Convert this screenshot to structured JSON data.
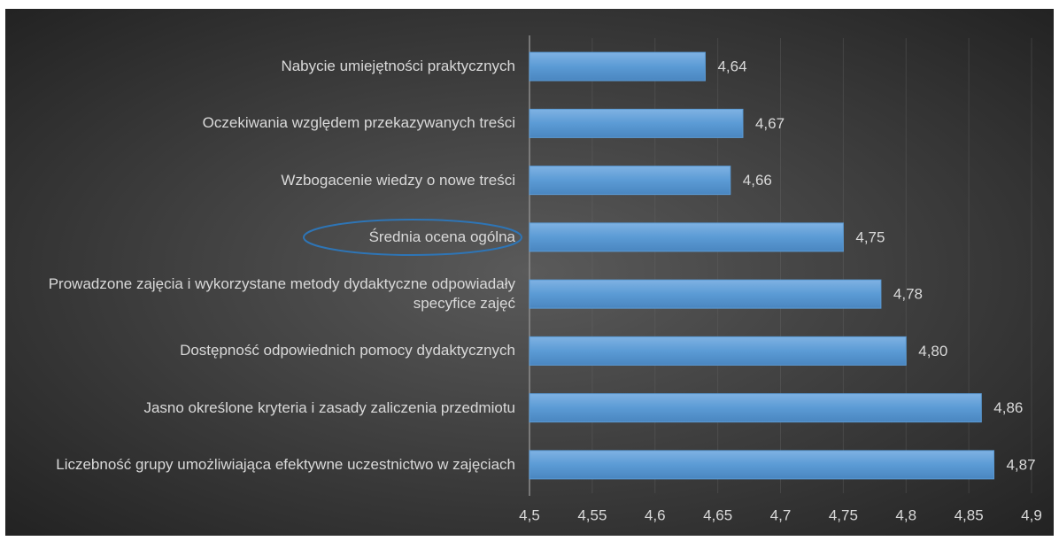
{
  "chart_data": {
    "type": "bar",
    "orientation": "horizontal",
    "categories": [
      "Nabycie umiejętności praktycznych",
      "Oczekiwania względem przekazywanych treści",
      "Wzbogacenie wiedzy o nowe treści",
      "Średnia ocena ogólna",
      "Prowadzone zajęcia i wykorzystane metody dydaktyczne odpowiadały specyfice zajęć",
      "Dostępność odpowiednich pomocy dydaktycznych",
      "Jasno określone kryteria i zasady zaliczenia przedmiotu",
      "Liczebność grupy umożliwiająca efektywne uczestnictwo w zajęciach"
    ],
    "values": [
      4.64,
      4.67,
      4.66,
      4.75,
      4.78,
      4.8,
      4.86,
      4.87
    ],
    "value_labels": [
      "4,64",
      "4,67",
      "4,66",
      "4,75",
      "4,78",
      "4,80",
      "4,86",
      "4,87"
    ],
    "color": "#5b9bd5",
    "xlim": [
      4.5,
      4.9
    ],
    "xticks": [
      {
        "value": 4.5,
        "label": "4,5"
      },
      {
        "value": 4.55,
        "label": "4,55"
      },
      {
        "value": 4.6,
        "label": "4,6"
      },
      {
        "value": 4.65,
        "label": "4,65"
      },
      {
        "value": 4.7,
        "label": "4,7"
      },
      {
        "value": 4.75,
        "label": "4,75"
      },
      {
        "value": 4.8,
        "label": "4,8"
      },
      {
        "value": 4.85,
        "label": "4,85"
      },
      {
        "value": 4.9,
        "label": "4,9"
      }
    ],
    "grid": true
  }
}
